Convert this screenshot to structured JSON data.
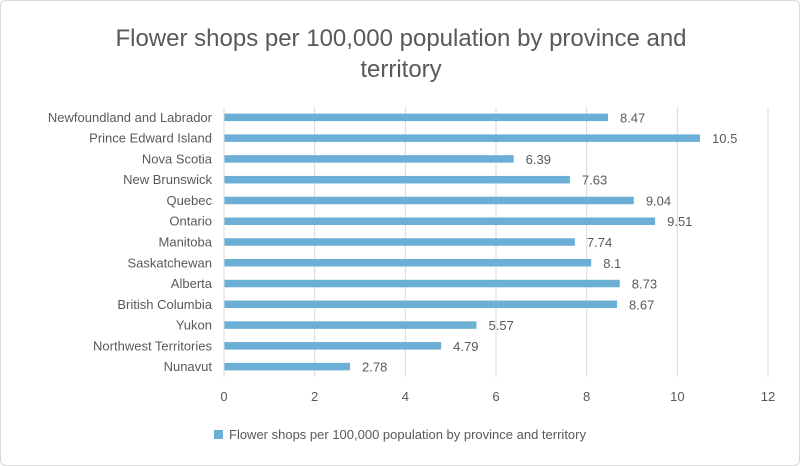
{
  "chart_data": {
    "type": "bar",
    "orientation": "horizontal",
    "title": "Flower shops per 100,000 population by province and territory",
    "categories": [
      "Newfoundland and Labrador",
      "Prince Edward Island",
      "Nova Scotia",
      "New Brunswick",
      "Quebec",
      "Ontario",
      "Manitoba",
      "Saskatchewan",
      "Alberta",
      "British Columbia",
      "Yukon",
      "Northwest Territories",
      "Nunavut"
    ],
    "series": [
      {
        "name": "Flower shops per 100,000 population by province and territory",
        "values": [
          8.47,
          10.5,
          6.39,
          7.63,
          9.04,
          9.51,
          7.74,
          8.1,
          8.73,
          8.67,
          5.57,
          4.79,
          2.78
        ],
        "labels": [
          "8.47",
          "10.5",
          "6.39",
          "7.63",
          "9.04",
          "9.51",
          "7.74",
          "8.1",
          "8.73",
          "8.67",
          "5.57",
          "4.79",
          "2.78"
        ]
      }
    ],
    "xlim": [
      0,
      12
    ],
    "xticks": [
      0,
      2,
      4,
      6,
      8,
      10,
      12
    ],
    "grid": true,
    "legend": "bottom",
    "bar_color": "#6baed6",
    "grid_color": "#d9d9d9",
    "text_color": "#595959"
  }
}
